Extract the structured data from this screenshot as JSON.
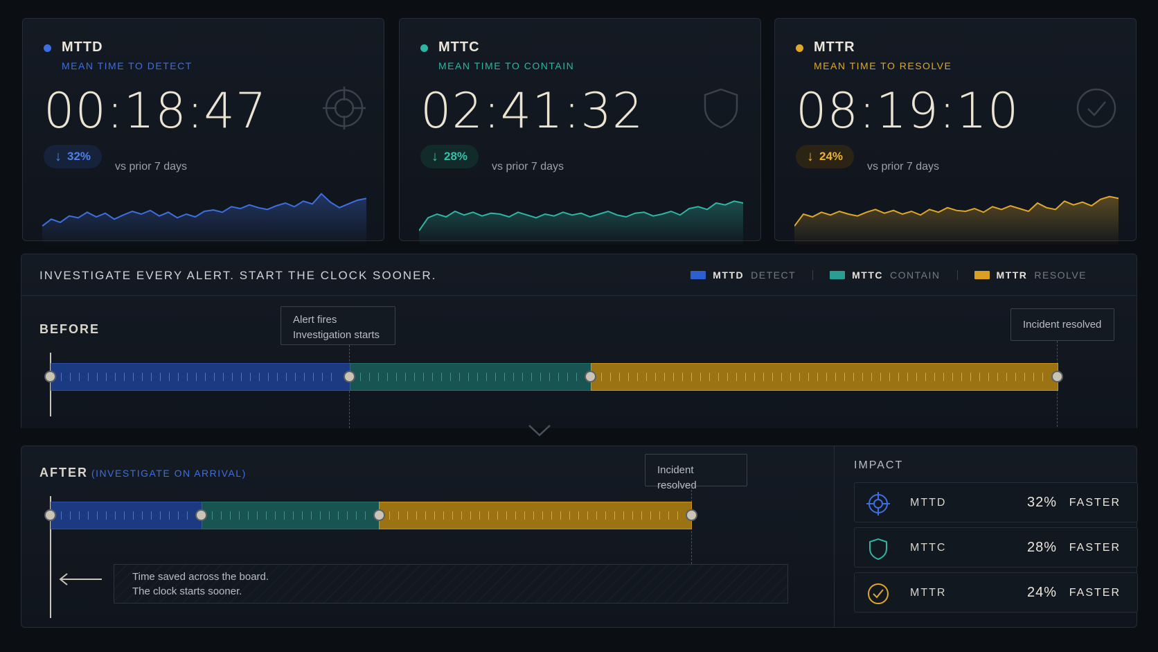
{
  "metrics": [
    {
      "key": "mttd",
      "name": "MTTD",
      "subtitle": "MEAN TIME TO DETECT",
      "time": "00:18:47",
      "change": "32%",
      "vs": "vs prior 7 days",
      "color": "#3d6fe0",
      "icon": "crosshair-icon",
      "trend": [
        40,
        55,
        48,
        62,
        58,
        70,
        60,
        68,
        55,
        64,
        72,
        66,
        74,
        62,
        70,
        58,
        66,
        60,
        72,
        75,
        70,
        82,
        78,
        86,
        80,
        76,
        84,
        90,
        82,
        94,
        88,
        110,
        92,
        80,
        88,
        96,
        100
      ]
    },
    {
      "key": "mttc",
      "name": "MTTC",
      "subtitle": "MEAN TIME TO CONTAIN",
      "time": "02:41:32",
      "change": "28%",
      "vs": "vs prior 7 days",
      "color": "#2fb5a3",
      "icon": "shield-icon",
      "trend": [
        30,
        58,
        66,
        60,
        72,
        64,
        70,
        62,
        68,
        66,
        60,
        70,
        64,
        58,
        66,
        62,
        70,
        64,
        68,
        60,
        66,
        72,
        64,
        60,
        68,
        70,
        62,
        66,
        72,
        64,
        78,
        82,
        76,
        90,
        86,
        94,
        90
      ]
    },
    {
      "key": "mttr",
      "name": "MTTR",
      "subtitle": "MEAN TIME TO RESOLVE",
      "time": "08:19:10",
      "change": "24%",
      "vs": "vs prior 7 days",
      "color": "#e0a82b",
      "icon": "check-circle-icon",
      "trend": [
        40,
        66,
        60,
        70,
        64,
        72,
        66,
        62,
        70,
        76,
        68,
        74,
        66,
        72,
        64,
        76,
        70,
        80,
        74,
        72,
        78,
        70,
        82,
        76,
        84,
        78,
        72,
        90,
        80,
        76,
        94,
        86,
        92,
        84,
        98,
        104,
        100
      ]
    }
  ],
  "timeline": {
    "title": "INVESTIGATE EVERY ALERT. START THE CLOCK SOONER.",
    "legend": [
      {
        "name": "MTTD",
        "desc": "DETECT",
        "color": "#2f5fcf"
      },
      {
        "name": "MTTC",
        "desc": "CONTAIN",
        "color": "#2a9e93"
      },
      {
        "name": "MTTR",
        "desc": "RESOLVE",
        "color": "#d9a021"
      }
    ],
    "before": {
      "label": "BEFORE",
      "callout_alert_line1": "Alert fires",
      "callout_alert_line2": "Investigation starts",
      "callout_resolved": "Incident resolved"
    },
    "after": {
      "label": "AFTER",
      "sublabel": "(INVESTIGATE ON ARRIVAL)",
      "callout_resolved": "Incident resolved",
      "saved_line1": "Time saved across the board.",
      "saved_line2": "The clock starts sooner."
    }
  },
  "impact": {
    "title": "IMPACT",
    "rows": [
      {
        "name": "MTTD",
        "pct": "32%",
        "label": "FASTER",
        "icon": "crosshair-icon"
      },
      {
        "name": "MTTC",
        "pct": "28%",
        "label": "FASTER",
        "icon": "shield-icon"
      },
      {
        "name": "MTTR",
        "pct": "24%",
        "label": "FASTER",
        "icon": "check-circle-icon"
      }
    ]
  }
}
